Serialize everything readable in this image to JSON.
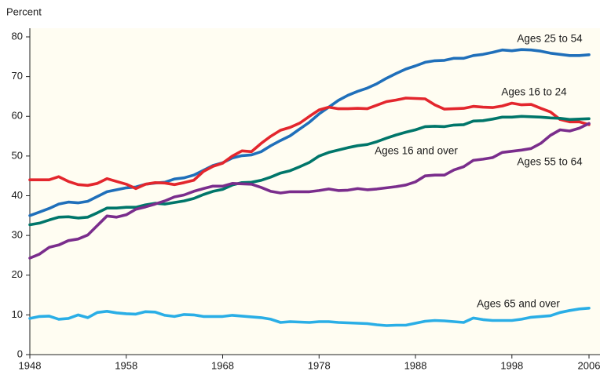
{
  "chart_data": {
    "type": "line",
    "y_label": "Percent",
    "x": [
      1948,
      1949,
      1950,
      1951,
      1952,
      1953,
      1954,
      1955,
      1956,
      1957,
      1958,
      1959,
      1960,
      1961,
      1962,
      1963,
      1964,
      1965,
      1966,
      1967,
      1968,
      1969,
      1970,
      1971,
      1972,
      1973,
      1974,
      1975,
      1976,
      1977,
      1978,
      1979,
      1980,
      1981,
      1982,
      1983,
      1984,
      1985,
      1986,
      1987,
      1988,
      1989,
      1990,
      1991,
      1992,
      1993,
      1994,
      1995,
      1996,
      1997,
      1998,
      1999,
      2000,
      2001,
      2002,
      2003,
      2004,
      2005,
      2006
    ],
    "series": [
      {
        "name": "Ages 25 to 54",
        "color": "#1f6fba",
        "values": [
          35.0,
          35.9,
          36.8,
          37.9,
          38.4,
          38.2,
          38.6,
          39.8,
          41.0,
          41.5,
          42.0,
          42.2,
          42.9,
          43.2,
          43.4,
          44.2,
          44.5,
          45.2,
          46.4,
          47.6,
          48.3,
          49.5,
          50.1,
          50.3,
          51.1,
          52.6,
          53.9,
          55.1,
          56.8,
          58.5,
          60.6,
          62.3,
          64.0,
          65.3,
          66.3,
          67.1,
          68.2,
          69.6,
          70.8,
          71.9,
          72.7,
          73.6,
          74.0,
          74.1,
          74.6,
          74.6,
          75.3,
          75.6,
          76.1,
          76.7,
          76.5,
          76.8,
          76.7,
          76.4,
          75.9,
          75.6,
          75.3,
          75.3,
          75.5
        ]
      },
      {
        "name": "Ages 16 to 24",
        "color": "#e3262d",
        "values": [
          44,
          44,
          44,
          44.8,
          43.6,
          42.8,
          42.6,
          43.1,
          44.3,
          43.6,
          42.9,
          41.8,
          42.9,
          43.3,
          43.2,
          42.8,
          43.3,
          43.9,
          46.1,
          47.4,
          48.2,
          50.0,
          51.3,
          51.1,
          53.2,
          55.0,
          56.5,
          57.2,
          58.3,
          60.0,
          61.6,
          62.3,
          61.9,
          61.9,
          62.0,
          61.9,
          62.8,
          63.7,
          64.1,
          64.6,
          64.5,
          64.4,
          62.9,
          61.8,
          61.9,
          62.0,
          62.5,
          62.3,
          62.2,
          62.6,
          63.3,
          62.9,
          63.0,
          62.0,
          61.1,
          59.2,
          58.6,
          58.6,
          57.9
        ]
      },
      {
        "name": "Ages 16 and over",
        "color": "#00766a",
        "values": [
          32.7,
          33.1,
          33.9,
          34.6,
          34.7,
          34.4,
          34.6,
          35.7,
          36.9,
          36.9,
          37.1,
          37.1,
          37.7,
          38.1,
          37.9,
          38.3,
          38.7,
          39.3,
          40.3,
          41.1,
          41.6,
          42.7,
          43.3,
          43.4,
          43.9,
          44.7,
          45.7,
          46.3,
          47.3,
          48.4,
          50.0,
          50.9,
          51.5,
          52.1,
          52.6,
          52.9,
          53.6,
          54.5,
          55.3,
          56.0,
          56.6,
          57.4,
          57.5,
          57.4,
          57.8,
          57.9,
          58.8,
          58.9,
          59.3,
          59.8,
          59.8,
          60.0,
          59.9,
          59.8,
          59.6,
          59.5,
          59.2,
          59.3,
          59.4
        ]
      },
      {
        "name": "Ages 55 to 64",
        "color": "#7a2d8c",
        "values": [
          24.3,
          25.3,
          27.0,
          27.6,
          28.7,
          29.1,
          30.1,
          32.5,
          34.9,
          34.6,
          35.2,
          36.6,
          37.2,
          37.9,
          38.7,
          39.7,
          40.2,
          41.1,
          41.8,
          42.4,
          42.4,
          43.1,
          43.0,
          42.9,
          42.1,
          41.1,
          40.7,
          41.0,
          41.0,
          41.0,
          41.3,
          41.7,
          41.3,
          41.4,
          41.8,
          41.5,
          41.7,
          42.0,
          42.3,
          42.7,
          43.5,
          45.0,
          45.2,
          45.2,
          46.5,
          47.3,
          48.9,
          49.2,
          49.6,
          50.9,
          51.2,
          51.5,
          51.9,
          53.2,
          55.2,
          56.6,
          56.3,
          57.0,
          58.2
        ]
      },
      {
        "name": "Ages 65 and over",
        "color": "#2aaee6",
        "values": [
          9.1,
          9.6,
          9.7,
          8.9,
          9.1,
          10.0,
          9.3,
          10.6,
          10.9,
          10.5,
          10.3,
          10.2,
          10.8,
          10.7,
          9.9,
          9.6,
          10.1,
          10.0,
          9.6,
          9.6,
          9.6,
          9.9,
          9.7,
          9.5,
          9.3,
          8.9,
          8.1,
          8.3,
          8.2,
          8.1,
          8.3,
          8.3,
          8.1,
          8.0,
          7.9,
          7.8,
          7.5,
          7.3,
          7.4,
          7.4,
          7.9,
          8.4,
          8.6,
          8.5,
          8.3,
          8.1,
          9.2,
          8.8,
          8.6,
          8.6,
          8.6,
          8.9,
          9.4,
          9.6,
          9.8,
          10.6,
          11.1,
          11.5,
          11.7
        ]
      }
    ],
    "xlim": [
      1948,
      2006
    ],
    "xticks": [
      1948,
      1958,
      1968,
      1978,
      1988,
      1998,
      2006
    ],
    "ylim": [
      0,
      80
    ],
    "yticks": [
      0,
      10,
      20,
      30,
      40,
      50,
      60,
      70,
      80
    ]
  }
}
